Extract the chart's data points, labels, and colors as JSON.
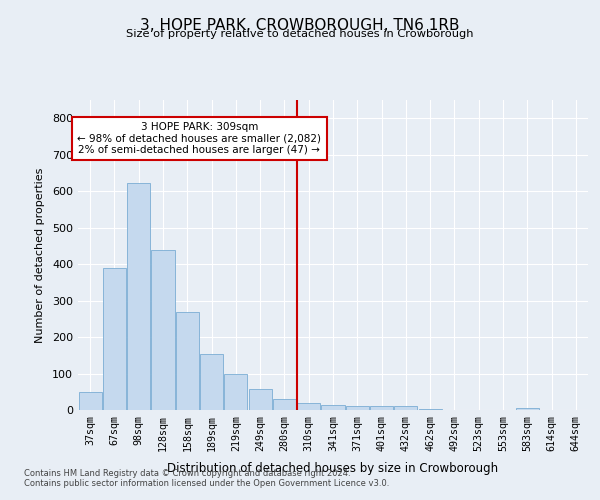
{
  "title": "3, HOPE PARK, CROWBOROUGH, TN6 1RB",
  "subtitle": "Size of property relative to detached houses in Crowborough",
  "xlabel": "Distribution of detached houses by size in Crowborough",
  "ylabel": "Number of detached properties",
  "categories": [
    "37sqm",
    "67sqm",
    "98sqm",
    "128sqm",
    "158sqm",
    "189sqm",
    "219sqm",
    "249sqm",
    "280sqm",
    "310sqm",
    "341sqm",
    "371sqm",
    "401sqm",
    "432sqm",
    "462sqm",
    "492sqm",
    "523sqm",
    "553sqm",
    "583sqm",
    "614sqm",
    "644sqm"
  ],
  "values": [
    50,
    390,
    623,
    440,
    268,
    153,
    98,
    57,
    30,
    18,
    13,
    10,
    10,
    12,
    3,
    0,
    0,
    0,
    6,
    0,
    0
  ],
  "bar_color": "#c5d9ee",
  "bar_edge_color": "#7aadd4",
  "vline_color": "#cc0000",
  "annotation_line1": "3 HOPE PARK: 309sqm",
  "annotation_line2": "← 98% of detached houses are smaller (2,082)",
  "annotation_line3": "2% of semi-detached houses are larger (47) →",
  "annotation_box_color": "#ffffff",
  "annotation_box_edge_color": "#cc0000",
  "background_color": "#e8eef5",
  "grid_color": "#ffffff",
  "ylim": [
    0,
    850
  ],
  "yticks": [
    0,
    100,
    200,
    300,
    400,
    500,
    600,
    700,
    800
  ],
  "footnote1": "Contains HM Land Registry data © Crown copyright and database right 2024.",
  "footnote2": "Contains public sector information licensed under the Open Government Licence v3.0."
}
